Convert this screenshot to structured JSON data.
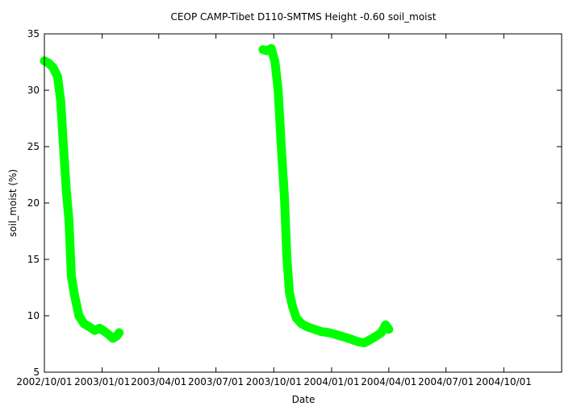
{
  "chart_data": {
    "type": "scatter",
    "title": "CEOP CAMP-Tibet D110-SMTMS Height -0.60 soil_moist",
    "xlabel": "Date",
    "ylabel": "soil_moist (%)",
    "ylim": [
      5,
      35
    ],
    "yticks": [
      5,
      10,
      15,
      20,
      25,
      30,
      35
    ],
    "xlim": [
      "2002-10-01",
      "2005-01-01"
    ],
    "xticks": [
      "2002-10-01",
      "2003-01-01",
      "2003-04-01",
      "2003-07-01",
      "2003-10-01",
      "2004-01-01",
      "2004-04-01",
      "2004-07-01",
      "2004-10-01"
    ],
    "xtick_labels": [
      "2002/10/01",
      "2003/01/01",
      "2003/04/01",
      "2003/07/01",
      "2003/10/01",
      "2004/01/01",
      "2004/04/01",
      "2004/07/01",
      "2004/10/01"
    ],
    "grid": false,
    "series_color": "#00ff00",
    "series": [
      {
        "x": [
          "2002-10-01",
          "2002-10-08",
          "2002-10-15",
          "2002-10-22",
          "2002-10-27",
          "2002-11-01",
          "2002-11-05",
          "2002-11-09",
          "2002-11-13",
          "2002-11-18",
          "2002-11-25",
          "2002-12-03",
          "2002-12-12",
          "2002-12-20",
          "2002-12-28",
          "2003-01-05",
          "2003-01-12",
          "2003-01-18",
          "2003-01-24",
          "2003-01-28"
        ],
        "y": [
          32.6,
          32.4,
          32.0,
          31.2,
          29.0,
          24.5,
          21.0,
          18.5,
          13.5,
          11.8,
          10.0,
          9.3,
          9.0,
          8.7,
          8.9,
          8.6,
          8.3,
          8.0,
          8.2,
          8.5
        ]
      },
      {
        "x": [
          "2003-09-14",
          "2003-09-20",
          "2003-09-27",
          "2003-10-03",
          "2003-10-08",
          "2003-10-13",
          "2003-10-18",
          "2003-10-22",
          "2003-10-26",
          "2003-10-31",
          "2003-11-06",
          "2003-11-14",
          "2003-11-24",
          "2003-12-05",
          "2003-12-15",
          "2003-12-28",
          "2004-01-10",
          "2004-01-22",
          "2004-02-02",
          "2004-02-12",
          "2004-02-22",
          "2004-03-03",
          "2004-03-12",
          "2004-03-20",
          "2004-03-27",
          "2004-04-01"
        ],
        "y": [
          33.6,
          33.5,
          33.7,
          32.5,
          30.0,
          25.0,
          20.5,
          15.0,
          12.0,
          10.8,
          9.8,
          9.3,
          9.0,
          8.8,
          8.6,
          8.5,
          8.3,
          8.1,
          7.9,
          7.7,
          7.6,
          7.9,
          8.2,
          8.5,
          9.2,
          8.8
        ]
      }
    ]
  }
}
